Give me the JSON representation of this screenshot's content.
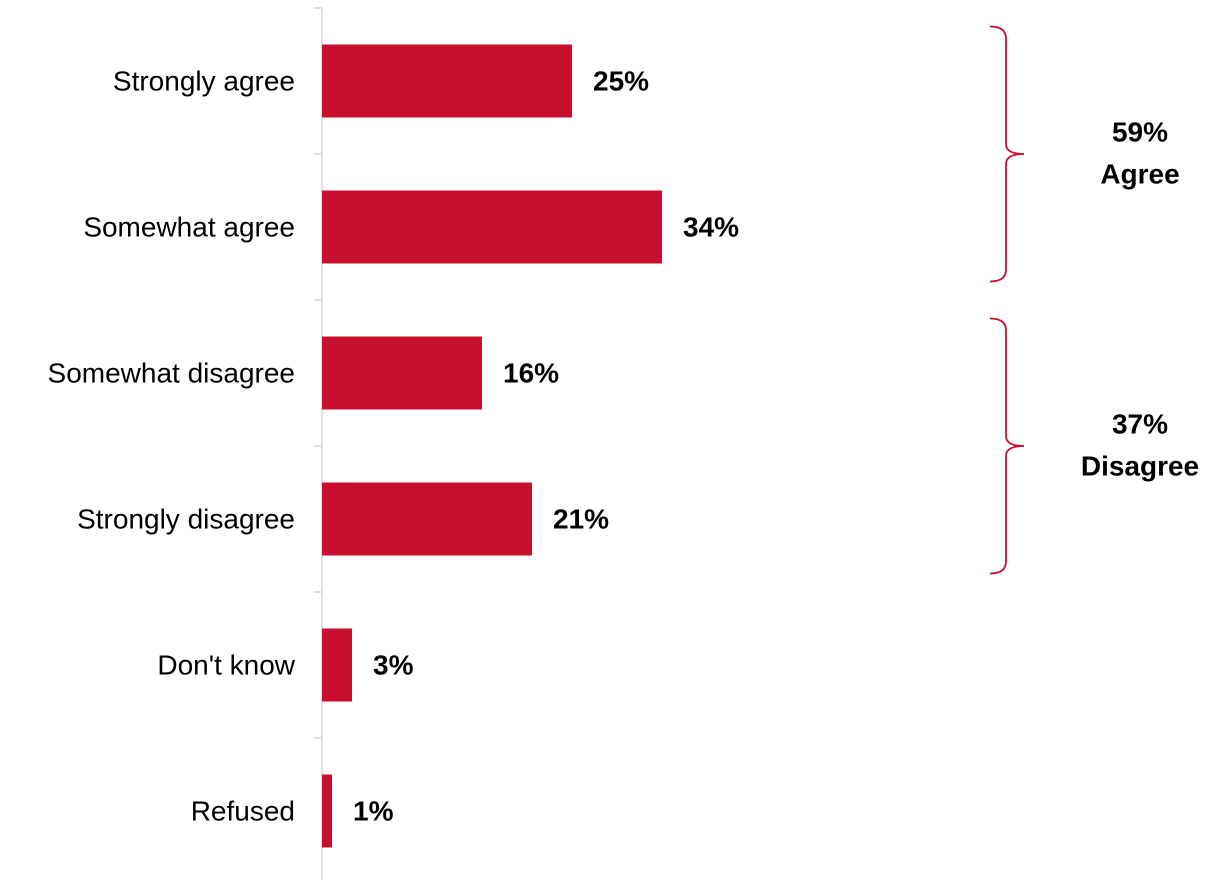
{
  "chart_data": {
    "type": "bar",
    "orientation": "horizontal",
    "categories": [
      "Strongly agree",
      "Somewhat agree",
      "Somewhat disagree",
      "Strongly disagree",
      "Don't know",
      "Refused"
    ],
    "values": [
      25,
      34,
      16,
      21,
      3,
      1
    ],
    "value_labels": [
      "25%",
      "34%",
      "16%",
      "21%",
      "3%",
      "1%"
    ],
    "unit": "%",
    "xlim": [
      0,
      100
    ],
    "grid": false,
    "bar_color": "#C8102E",
    "bracket_color": "#C8102E",
    "groups": [
      {
        "value_label": "59%",
        "name": "Agree",
        "categories": [
          "Strongly agree",
          "Somewhat agree"
        ]
      },
      {
        "value_label": "37%",
        "name": "Disagree",
        "categories": [
          "Somewhat disagree",
          "Strongly disagree"
        ]
      }
    ]
  }
}
